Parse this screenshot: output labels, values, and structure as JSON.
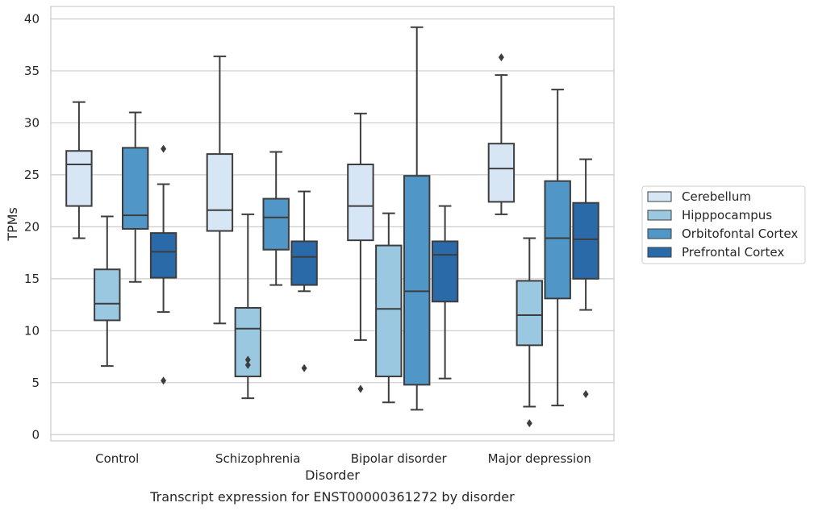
{
  "caption": "Transcript expression for ENST00000361272 by disorder",
  "chart_data": {
    "type": "box",
    "title": "",
    "xlabel": "Disorder",
    "ylabel": "TPMs",
    "ylim": [
      -0.6,
      41.2
    ],
    "yticks": [
      0,
      5,
      10,
      15,
      20,
      25,
      30,
      35,
      40
    ],
    "grid": "horizontal",
    "legend_position": "right",
    "categories": [
      "Control",
      "Schizophrenia",
      "Bipolar disorder",
      "Major depression"
    ],
    "series": [
      {
        "name": "Cerebellum",
        "color": "#d7e6f4",
        "boxes": [
          {
            "whislo": 18.9,
            "q1": 22.0,
            "med": 26.0,
            "q3": 27.3,
            "whishi": 32.0,
            "fliers": []
          },
          {
            "whislo": 10.7,
            "q1": 19.6,
            "med": 21.6,
            "q3": 27.0,
            "whishi": 36.4,
            "fliers": []
          },
          {
            "whislo": 9.1,
            "q1": 18.7,
            "med": 22.0,
            "q3": 26.0,
            "whishi": 30.9,
            "fliers": [
              4.4
            ]
          },
          {
            "whislo": 21.2,
            "q1": 22.4,
            "med": 25.6,
            "q3": 28.0,
            "whishi": 34.6,
            "fliers": [
              36.3
            ]
          }
        ]
      },
      {
        "name": "Hipppocampus",
        "color": "#9ac8e0",
        "boxes": [
          {
            "whislo": 6.6,
            "q1": 11.0,
            "med": 12.6,
            "q3": 15.9,
            "whishi": 21.0,
            "fliers": []
          },
          {
            "whislo": 3.5,
            "q1": 5.6,
            "med": 10.2,
            "q3": 12.2,
            "whishi": 21.2,
            "fliers": [
              6.7,
              7.2
            ]
          },
          {
            "whislo": 3.1,
            "q1": 5.6,
            "med": 12.1,
            "q3": 18.2,
            "whishi": 21.3,
            "fliers": []
          },
          {
            "whislo": 2.7,
            "q1": 8.6,
            "med": 11.5,
            "q3": 14.8,
            "whishi": 18.9,
            "fliers": [
              1.1
            ]
          }
        ]
      },
      {
        "name": "Orbitofontal Cortex",
        "color": "#5097c7",
        "boxes": [
          {
            "whislo": 14.7,
            "q1": 19.8,
            "med": 21.1,
            "q3": 27.6,
            "whishi": 31.0,
            "fliers": []
          },
          {
            "whislo": 14.4,
            "q1": 17.8,
            "med": 20.9,
            "q3": 22.7,
            "whishi": 27.2,
            "fliers": []
          },
          {
            "whislo": 2.4,
            "q1": 4.8,
            "med": 13.8,
            "q3": 24.9,
            "whishi": 39.2,
            "fliers": []
          },
          {
            "whislo": 2.8,
            "q1": 13.1,
            "med": 18.9,
            "q3": 24.4,
            "whishi": 33.2,
            "fliers": []
          }
        ]
      },
      {
        "name": "Prefrontal Cortex",
        "color": "#2a6aa9",
        "boxes": [
          {
            "whislo": 11.8,
            "q1": 15.1,
            "med": 17.6,
            "q3": 19.4,
            "whishi": 24.1,
            "fliers": [
              27.5,
              5.2
            ]
          },
          {
            "whislo": 13.8,
            "q1": 14.4,
            "med": 17.1,
            "q3": 18.6,
            "whishi": 23.4,
            "fliers": [
              6.4
            ]
          },
          {
            "whislo": 5.4,
            "q1": 12.8,
            "med": 17.3,
            "q3": 18.6,
            "whishi": 22.0,
            "fliers": []
          },
          {
            "whislo": 12.0,
            "q1": 15.0,
            "med": 18.8,
            "q3": 22.3,
            "whishi": 26.5,
            "fliers": [
              3.9
            ]
          }
        ]
      }
    ]
  }
}
